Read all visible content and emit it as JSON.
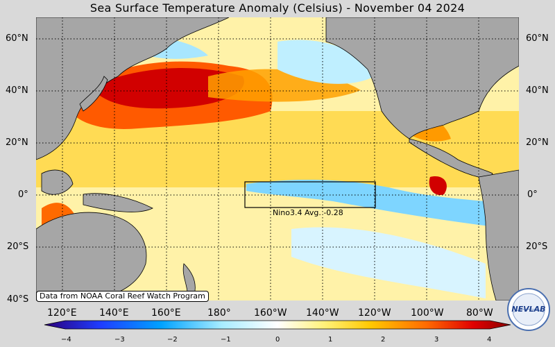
{
  "title": "Sea Surface Temperature Anomaly (Celsius) - November 04 2024",
  "lat_labels": [
    "60°N",
    "40°N",
    "20°N",
    "0°",
    "20°S",
    "40°S"
  ],
  "lon_labels": [
    "120°E",
    "140°E",
    "160°E",
    "180°",
    "160°W",
    "140°W",
    "120°W",
    "100°W",
    "80°W"
  ],
  "nino_label": "Nino3.4 Avg. -0.28",
  "credit": "Data from NOAA Coral Reef Watch Program",
  "colorbar_ticks": [
    "−4",
    "−3",
    "−2",
    "−1",
    "0",
    "1",
    "2",
    "3",
    "4"
  ],
  "logo_text": "NEV LAB",
  "colors": {
    "land": "#a6a6a6",
    "ocean_neutral": "#ffffff",
    "warm": "#ff3c00",
    "cold": "#2aa8ff"
  }
}
